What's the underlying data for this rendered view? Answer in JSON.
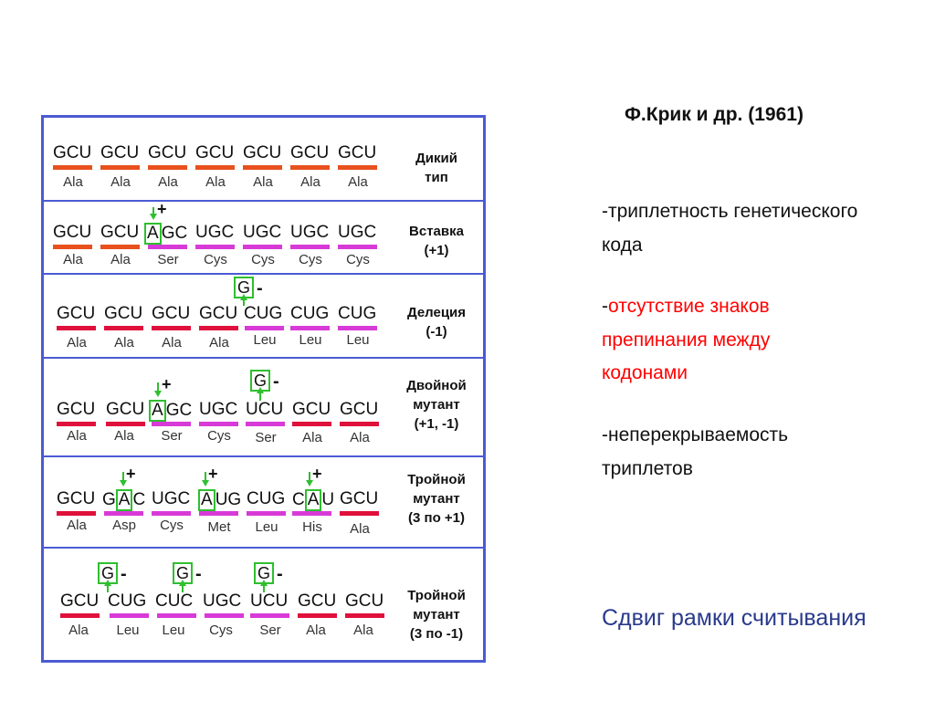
{
  "title": "Ф.Крик и др. (1961)",
  "points": {
    "p1_line1": "-триплетность генетического",
    "p1_line2": "кода",
    "p2_dash": "-",
    "p2_line1": "отсутствие знаков",
    "p2_line2": "препинания между",
    "p2_line3": "кодонами",
    "p3_line1": "-неперекрываемость",
    "p3_line2": "триплетов"
  },
  "footer": "Сдвиг рамки считывания",
  "colors": {
    "border": "#4b5bd3",
    "orange": "#e8501e",
    "red": "#e0103c",
    "magenta": "#d83ad8",
    "green": "#2fbf2f"
  },
  "figure": {
    "rows": [
      {
        "label": "Дикий\nтип",
        "codons": [
          "GCU",
          "GCU",
          "GCU",
          "GCU",
          "GCU",
          "GCU",
          "GCU"
        ],
        "aas": [
          "Ala",
          "Ala",
          "Ala",
          "Ala",
          "Ala",
          "Ala",
          "Ala"
        ],
        "bars": [
          "orange",
          "orange",
          "orange",
          "orange",
          "orange",
          "orange",
          "orange"
        ]
      },
      {
        "label": "Вставка\n(+1)",
        "codons": [
          "GCU",
          "GCU",
          "AGC",
          "UGC",
          "UGC",
          "UGC",
          "UGC"
        ],
        "aas": [
          "Ala",
          "Ala",
          "Ser",
          "Cys",
          "Cys",
          "Cys",
          "Cys"
        ],
        "bars": [
          "orange",
          "orange",
          "magenta",
          "magenta",
          "magenta",
          "magenta",
          "magenta"
        ],
        "plus": "+"
      },
      {
        "label": "Делеция\n(-1)",
        "codons": [
          "GCU",
          "GCU",
          "GCU",
          "GCU",
          "CUG",
          "CUG",
          "CUG"
        ],
        "aas": [
          "Ala",
          "Ala",
          "Ala",
          "Ala",
          "Leu",
          "Leu",
          "Leu"
        ],
        "bars": [
          "red",
          "red",
          "red",
          "red",
          "magenta",
          "magenta",
          "magenta"
        ],
        "deleted": "G",
        "minus": "-"
      },
      {
        "label": "Двойной\nмутант\n(+1,  -1)",
        "codons": [
          "GCU",
          "GCU",
          "AGC",
          "UGC",
          "UCU",
          "GCU",
          "GCU"
        ],
        "aas": [
          "Ala",
          "Ala",
          "Ser",
          "Cys",
          "Ser",
          "Ala",
          "Ala"
        ],
        "bars": [
          "red",
          "red",
          "magenta",
          "magenta",
          "magenta",
          "red",
          "red"
        ],
        "plus": "+",
        "deleted": "G",
        "minus": "-"
      },
      {
        "label": "Тройной\nмутант\n(3  по  +1)",
        "codons": [
          "GCU",
          "GAC",
          "UGC",
          "AUG",
          "CUG",
          "CAU",
          "GCU"
        ],
        "aas": [
          "Ala",
          "Asp",
          "Cys",
          "Met",
          "Leu",
          "His",
          "Ala"
        ],
        "bars": [
          "red",
          "magenta",
          "magenta",
          "magenta",
          "magenta",
          "magenta",
          "red"
        ],
        "plus": "+"
      },
      {
        "label": "Тройной\nмутант\n(3  по  -1)",
        "codons": [
          "GCU",
          "CUG",
          "CUC",
          "UGC",
          "UCU",
          "GCU",
          "GCU"
        ],
        "aas": [
          "Ala",
          "Leu",
          "Leu",
          "Cys",
          "Ser",
          "Ala",
          "Ala"
        ],
        "bars": [
          "red",
          "magenta",
          "magenta",
          "magenta",
          "magenta",
          "red",
          "red"
        ],
        "deleted": "G",
        "minus": "-"
      }
    ]
  }
}
